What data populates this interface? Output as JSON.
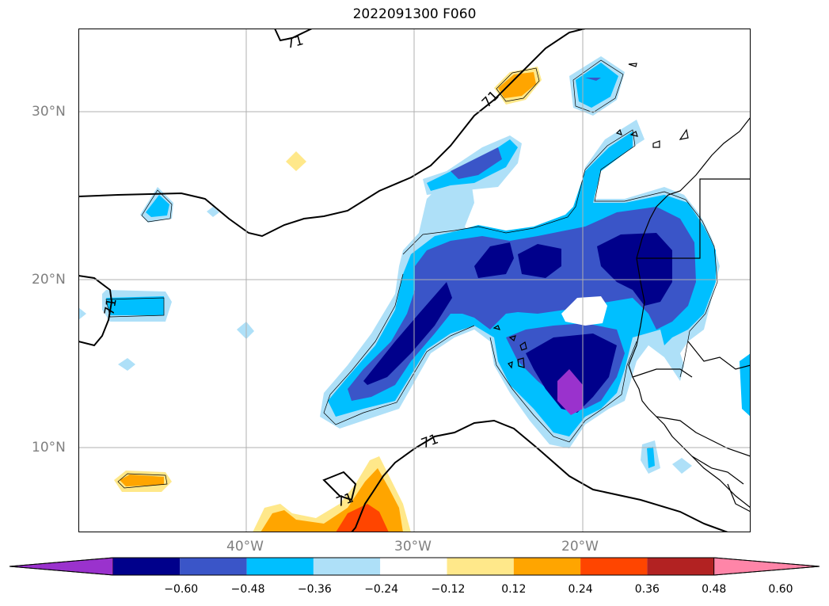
{
  "title": "2022091300 F060",
  "map": {
    "lat_labels": [
      "30°N",
      "20°N",
      "10°N"
    ],
    "lon_labels": [
      "40°W",
      "30°W",
      "20°W"
    ],
    "contour_value": "71",
    "grid": true
  },
  "colorbar": {
    "ticks": [
      "−0.60",
      "−0.48",
      "−0.36",
      "−0.24",
      "−0.12",
      "0.12",
      "0.24",
      "0.36",
      "0.48",
      "0.60"
    ],
    "colors": [
      "#9a32cd",
      "#00008b",
      "#3a55c8",
      "#00bfff",
      "#aee0f8",
      "#ffffff",
      "#ffe88a",
      "#ffa500",
      "#ff4500",
      "#b22222",
      "#ff85a8"
    ]
  }
}
